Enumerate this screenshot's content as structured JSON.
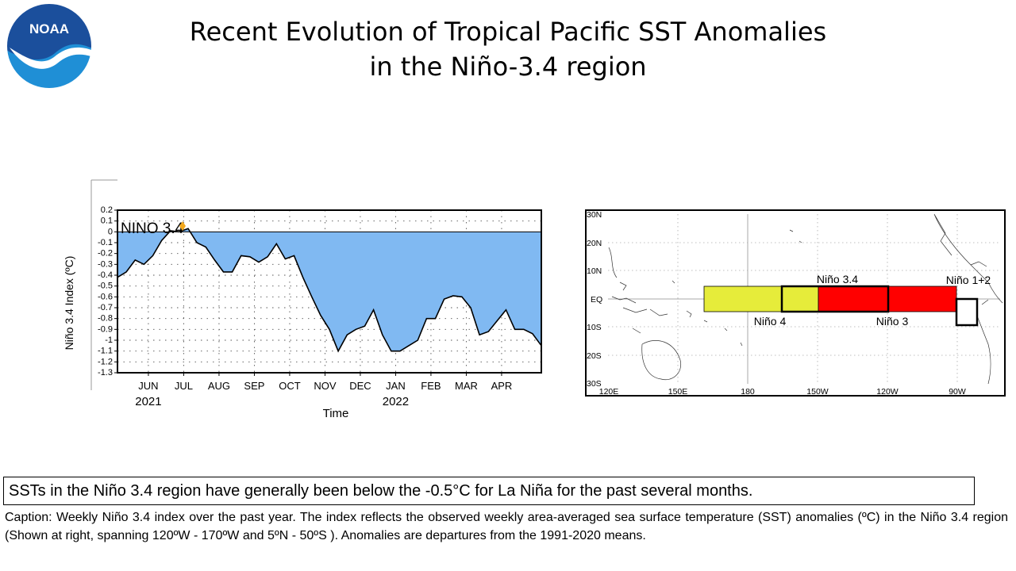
{
  "slide": {
    "title_line1": "Recent Evolution of Tropical Pacific SST Anomalies",
    "title_line2": "in the Niño-3.4 region",
    "summary": "SSTs in the Niño 3.4 region have generally been below the -0.5°C for La Niña for the past several months.",
    "caption": "Caption: Weekly Niño 3.4 index over the past year. The index reflects the observed weekly area-averaged sea surface temperature (SST) anomalies (ºC) in the Niño 3.4 region (Shown at right, spanning 120ºW - 170ºW and 5ºN - 50ºS ). Anomalies are departures from the 1991-2020 means."
  },
  "logo": {
    "text": "NOAA",
    "colors": {
      "top": "#1b4f9c",
      "bottom": "#1f8fd6",
      "bird": "#ffffff"
    }
  },
  "chart_data": {
    "type": "area",
    "panel_label": "NINO 3.4",
    "ylabel": "Niño 3.4 Index (ºC)",
    "xlabel": "Time",
    "ylim": [
      -1.3,
      0.2
    ],
    "yticks": [
      "0.2",
      "0.1",
      "0",
      "-0.1",
      "-0.2",
      "-0.3",
      "-0.4",
      "-0.5",
      "-0.6",
      "-0.7",
      "-0.8",
      "-0.9",
      "-1",
      "-1.1",
      "-1.2",
      "-1.3"
    ],
    "xlim": [
      0,
      48
    ],
    "month_ticks": [
      {
        "label": "JUN",
        "x": 3.5
      },
      {
        "label": "JUL",
        "x": 7.5
      },
      {
        "label": "AUG",
        "x": 11.5
      },
      {
        "label": "SEP",
        "x": 15.5
      },
      {
        "label": "OCT",
        "x": 19.5
      },
      {
        "label": "NOV",
        "x": 23.5
      },
      {
        "label": "DEC",
        "x": 27.5
      },
      {
        "label": "JAN",
        "x": 31.5
      },
      {
        "label": "FEB",
        "x": 35.5
      },
      {
        "label": "MAR",
        "x": 39.5
      },
      {
        "label": "APR",
        "x": 43.5
      }
    ],
    "year_labels": [
      {
        "label": "2021",
        "x": 3.5
      },
      {
        "label": "2022",
        "x": 31.5
      }
    ],
    "grid": true,
    "fill_color_negative": "#80b9f2",
    "x": [
      0,
      1,
      2,
      3,
      4,
      5,
      6,
      7,
      8,
      9,
      10,
      11,
      12,
      13,
      14,
      15,
      16,
      17,
      18,
      19,
      20,
      21,
      22,
      23,
      24,
      25,
      26,
      27,
      28,
      29,
      30,
      31,
      32,
      33,
      34,
      35,
      36,
      37,
      38,
      39,
      40,
      41,
      42,
      43,
      44,
      45,
      46,
      47,
      48
    ],
    "values": [
      -0.42,
      -0.37,
      -0.26,
      -0.3,
      -0.22,
      -0.08,
      0.01,
      0.0,
      0.03,
      -0.1,
      -0.14,
      -0.26,
      -0.37,
      -0.37,
      -0.22,
      -0.23,
      -0.28,
      -0.23,
      -0.11,
      -0.25,
      -0.22,
      -0.42,
      -0.6,
      -0.77,
      -0.9,
      -1.1,
      -0.95,
      -0.9,
      -0.87,
      -0.72,
      -0.95,
      -1.1,
      -1.1,
      -1.05,
      -1.0,
      -0.8,
      -0.8,
      -0.62,
      -0.59,
      -0.6,
      -0.7,
      -0.95,
      -0.92,
      -0.82,
      -0.72,
      -0.9,
      -0.9,
      -0.94,
      -1.05
    ]
  },
  "map": {
    "lat_labels": [
      "30N",
      "20N",
      "10N",
      "EQ",
      "10S",
      "20S",
      "30S"
    ],
    "lon_labels": [
      "120E",
      "150E",
      "180",
      "150W",
      "120W",
      "90W"
    ],
    "regions": [
      {
        "name": "Niño 4",
        "label": "Niño 4",
        "color": "#e6ec3a"
      },
      {
        "name": "Niño 3.4",
        "label": "Niño 3.4",
        "color": "none"
      },
      {
        "name": "Niño 3",
        "label": "Niño 3",
        "color": "#ff0000"
      },
      {
        "name": "Niño 1+2",
        "label": "Niño 1+2",
        "color": "#ffffff"
      }
    ]
  }
}
